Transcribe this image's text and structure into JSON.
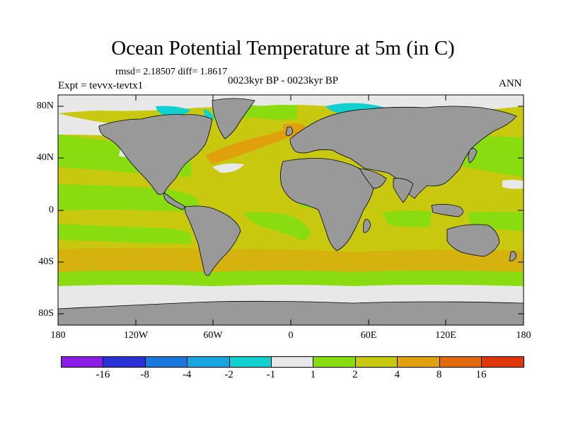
{
  "title": "Ocean Potential Temperature at 5m (in C)",
  "stats": "rmsd= 2.18507 diff= 1.8617",
  "experiment": "Expt = tevvx-tevtx1",
  "period": "0023kyr BP - 0023kyr BP",
  "season": "ANN",
  "lat_labels": [
    "80N",
    "40N",
    "0",
    "40S",
    "80S"
  ],
  "lon_labels": [
    "180",
    "120W",
    "60W",
    "0",
    "60E",
    "120E",
    "180"
  ],
  "colorbar": {
    "colors": [
      "#8a1ce6",
      "#2a32d6",
      "#1a78dc",
      "#19a6e0",
      "#10d0d0",
      "#e8e8e8",
      "#88dc10",
      "#c8c80e",
      "#e0a00e",
      "#e06a0c",
      "#e0360c"
    ],
    "labels": [
      "-16",
      "-8",
      "-4",
      "-2",
      "-1",
      "1",
      "2",
      "4",
      "8",
      "16"
    ]
  },
  "legend": {
    "land_color": "#999999"
  }
}
